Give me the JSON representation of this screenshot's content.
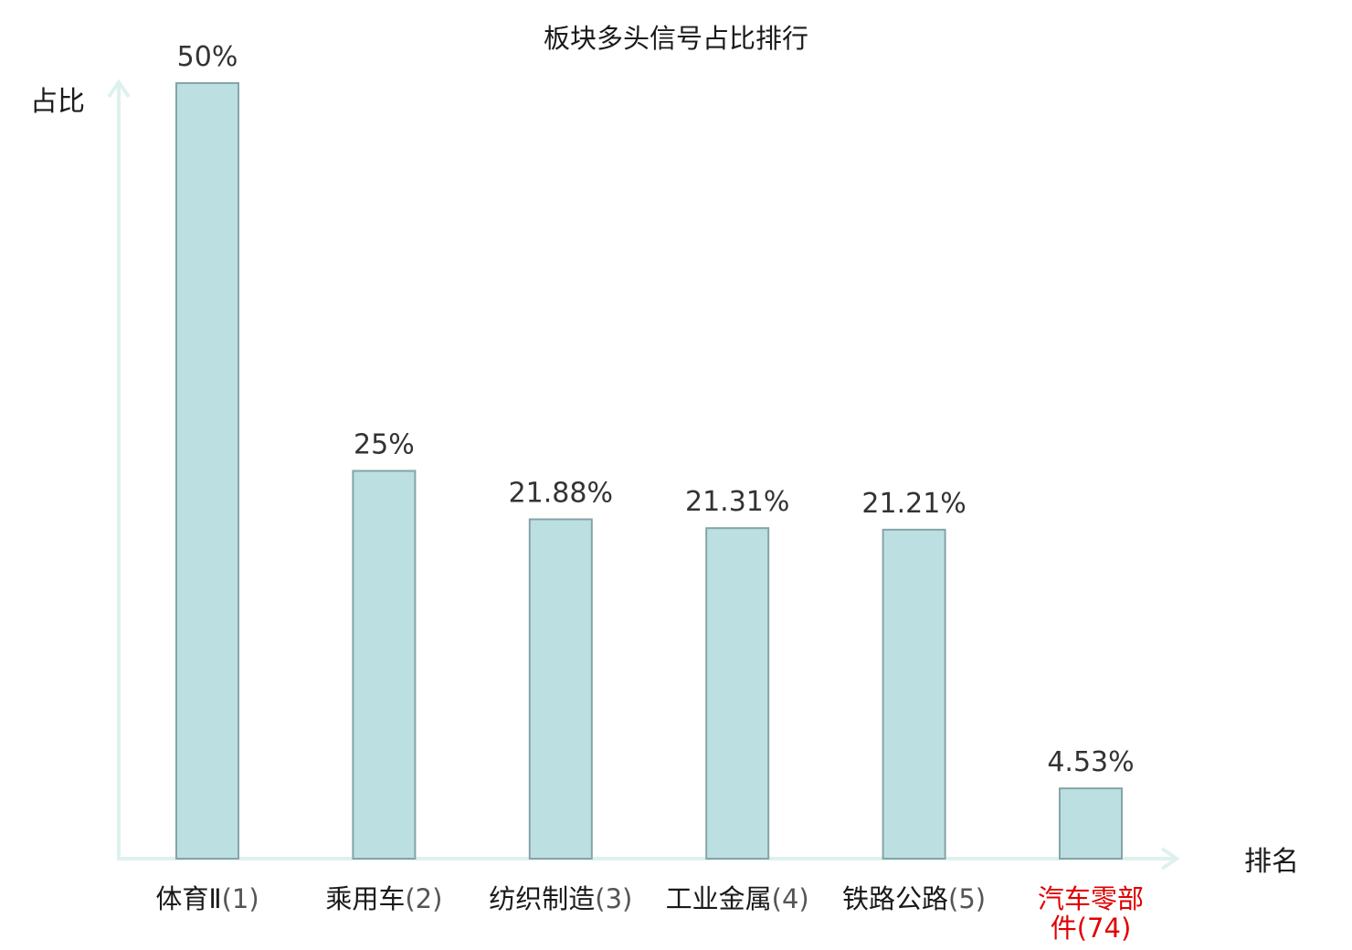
{
  "chart_data": {
    "type": "bar",
    "title": "板块多头信号占比排行",
    "xlabel": "排名",
    "ylabel": "占比",
    "categories": [
      {
        "name": "体育Ⅱ",
        "rank": "(1)"
      },
      {
        "name": "乘用车",
        "rank": "(2)"
      },
      {
        "name": "纺织制造",
        "rank": "(3)"
      },
      {
        "name": "工业金属",
        "rank": "(4)"
      },
      {
        "name": "铁路公路",
        "rank": "(5)"
      },
      {
        "name": "汽车零部件",
        "rank": "(74)"
      }
    ],
    "values": [
      50,
      25,
      21.88,
      21.31,
      21.21,
      4.53
    ],
    "value_labels": [
      "50%",
      "25%",
      "21.88%",
      "21.31%",
      "21.21%",
      "4.53%"
    ],
    "ylim": [
      0,
      50
    ],
    "grid": false,
    "colors": {
      "bar_fill": "#bce0e2",
      "bar_stroke": "#86a4a6",
      "axis": "#dff1ee",
      "highlight_label": "#e00000",
      "normal_label": "#1a1a1a"
    },
    "highlight_index": 5
  }
}
